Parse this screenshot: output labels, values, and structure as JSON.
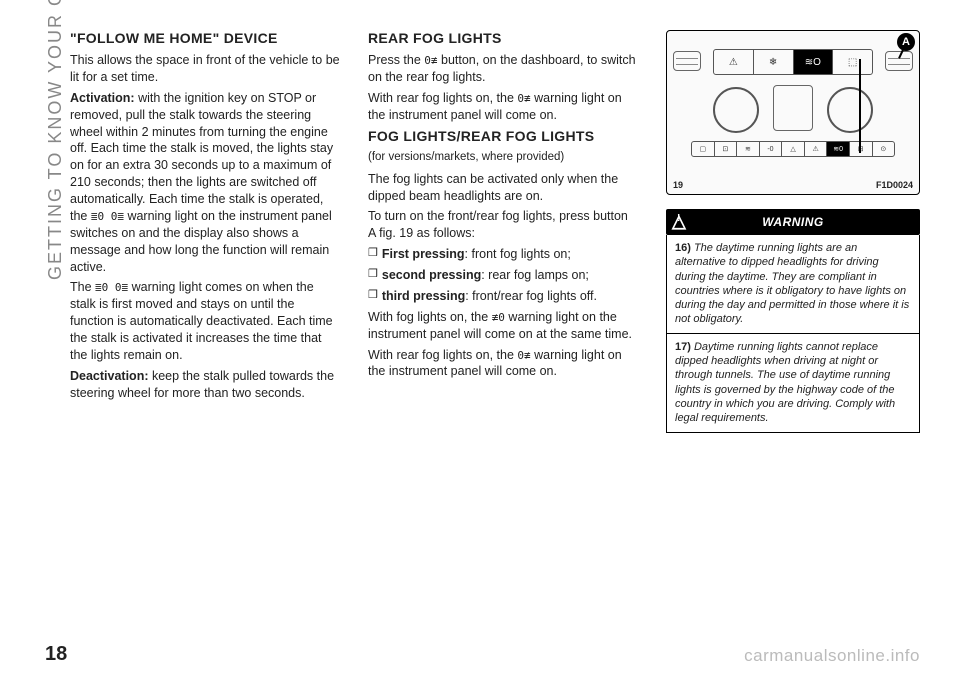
{
  "side_label": "GETTING TO KNOW YOUR CAR",
  "page_number": "18",
  "watermark": "carmanualsonline.info",
  "col1": {
    "h1": "\"FOLLOW ME HOME\" DEVICE",
    "p1": "This allows the space in front of the vehicle to be lit for a set time.",
    "p2a": "Activation:",
    "p2b": " with the ignition key on STOP or removed, pull the stalk towards the steering wheel within 2 minutes from turning the engine off. Each time the stalk is moved, the lights stay on for an extra 30 seconds up to a maximum of 210 seconds; then the lights are switched off automatically. Each time the stalk is operated, the ",
    "p2c": " warning light on the instrument panel switches on and the display also shows a message and how long the function will remain active.",
    "p3a": "The ",
    "p3b": " warning light comes on when the stalk is first moved and stays on until the function is automatically deactivated. Each time the stalk is activated it increases the time that the lights remain on.",
    "p4a": "Deactivation:",
    "p4b": " keep the stalk pulled towards the steering wheel for more than two seconds."
  },
  "col2": {
    "h1": "REAR FOG LIGHTS",
    "p1a": "Press the ",
    "p1b": " button, on the dashboard, to switch on the rear fog lights.",
    "p2a": "With rear fog lights on, the ",
    "p2b": " warning light on the instrument panel will come on.",
    "h2": "FOG LIGHTS/REAR FOG LIGHTS",
    "sub": "(for versions/markets, where provided)",
    "p3": "The fog lights can be activated only when the dipped beam headlights are on.",
    "p4": "To turn on the front/rear fog lights, press button A fig. 19 as follows:",
    "b1a": "First pressing",
    "b1b": ": front fog lights on;",
    "b2a": "second pressing",
    "b2b": ": rear fog lamps on;",
    "b3a": "third pressing",
    "b3b": ": front/rear fog lights off.",
    "p5a": "With fog lights on, the ",
    "p5b": " warning light on the instrument panel will come on at the same time.",
    "p6a": "With rear fog lights on, the ",
    "p6b": " warning light on the instrument panel will come on."
  },
  "col3": {
    "fig_num": "19",
    "fig_code": "F1D0024",
    "callout": "A",
    "warn_label": "WARNING",
    "w1n": "16)",
    "w1": " The daytime running lights are an alternative to dipped headlights for driving during the daytime. They are compliant in countries where is it obligatory to have lights on during the day and permitted in those where it is not obligatory.",
    "w2n": "17)",
    "w2": " Daytime running lights cannot replace dipped headlights when driving at night or through tunnels. The use of daytime running lights is governed by the highway code of the country in which you are driving. Comply with legal requirements."
  },
  "dashboard": {
    "top_row": [
      "⚠",
      "❄",
      "≋O",
      "⬚"
    ],
    "bottom_row": [
      "▢",
      "⊡",
      "≋",
      "-0",
      "△",
      "⚠",
      "≋0",
      "⊞",
      "⊙"
    ],
    "highlight_top_index": 2,
    "highlight_bottom_index": 6
  }
}
